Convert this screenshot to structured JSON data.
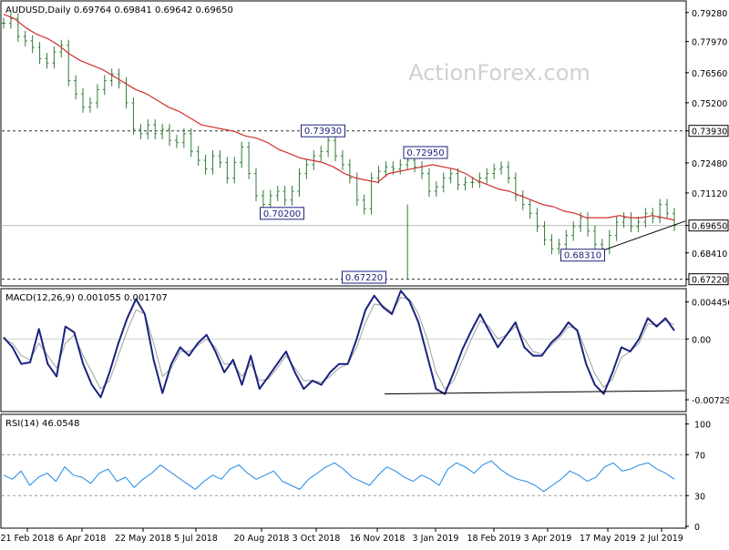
{
  "header": {
    "symbol_line": "AUDUSD,Daily  0.69764 0.69841 0.69642 0.69650",
    "watermark": "ActionForex.com"
  },
  "colors": {
    "candle": "#2e7d32",
    "sma": "#d32f2f",
    "macd": "#1a237e",
    "signal": "#a0a0a0",
    "rsi": "#1e88e5",
    "annotation_box": "#1a237e",
    "trendline": "#000000"
  },
  "chart_data": [
    {
      "type": "line",
      "name": "price",
      "title": "AUDUSD,Daily",
      "ohlc_header": {
        "open": 0.69764,
        "high": 0.69841,
        "low": 0.69642,
        "close": 0.6965
      },
      "ylim": [
        0.67,
        0.796
      ],
      "y_ticks": [
        "0.79280",
        "0.77970",
        "0.76560",
        "0.75200",
        "0.73930",
        "0.72480",
        "0.71120",
        "0.69650",
        "0.68410",
        "0.67220"
      ],
      "y_tick_values": [
        0.7928,
        0.7797,
        0.7656,
        0.752,
        0.7393,
        0.7248,
        0.7112,
        0.6965,
        0.6841,
        0.6722
      ],
      "x_ticks": [
        "21 Feb 2018",
        "6 Apr 2018",
        "22 May 2018",
        "5 Jul 2018",
        "20 Aug 2018",
        "3 Oct 2018",
        "16 Nov 2018",
        "3 Jan 2019",
        "18 Feb 2019",
        "3 Apr 2019",
        "17 May 2019",
        "2 Jul 2019"
      ],
      "close_path": [
        0.788,
        0.79,
        0.782,
        0.78,
        0.777,
        0.772,
        0.77,
        0.775,
        0.778,
        0.762,
        0.756,
        0.75,
        0.752,
        0.758,
        0.762,
        0.765,
        0.761,
        0.752,
        0.74,
        0.738,
        0.742,
        0.738,
        0.74,
        0.735,
        0.734,
        0.738,
        0.73,
        0.726,
        0.722,
        0.728,
        0.725,
        0.718,
        0.725,
        0.732,
        0.72,
        0.71,
        0.706,
        0.71,
        0.712,
        0.708,
        0.712,
        0.72,
        0.724,
        0.728,
        0.73,
        0.735,
        0.728,
        0.724,
        0.718,
        0.708,
        0.704,
        0.718,
        0.721,
        0.723,
        0.722,
        0.724,
        0.726,
        0.723,
        0.72,
        0.712,
        0.714,
        0.718,
        0.72,
        0.715,
        0.716,
        0.716,
        0.718,
        0.72,
        0.722,
        0.723,
        0.718,
        0.71,
        0.706,
        0.702,
        0.696,
        0.69,
        0.686,
        0.688,
        0.692,
        0.696,
        0.7,
        0.694,
        0.688,
        0.686,
        0.692,
        0.698,
        0.7,
        0.696,
        0.698,
        0.702,
        0.7,
        0.706,
        0.702,
        0.6965
      ],
      "sma_path": [
        0.792,
        0.79,
        0.786,
        0.783,
        0.781,
        0.778,
        0.774,
        0.771,
        0.769,
        0.767,
        0.764,
        0.761,
        0.758,
        0.756,
        0.753,
        0.75,
        0.748,
        0.745,
        0.742,
        0.741,
        0.74,
        0.739,
        0.737,
        0.736,
        0.734,
        0.731,
        0.729,
        0.727,
        0.726,
        0.725,
        0.723,
        0.72,
        0.718,
        0.717,
        0.716,
        0.72,
        0.721,
        0.722,
        0.723,
        0.724,
        0.723,
        0.722,
        0.72,
        0.717,
        0.715,
        0.713,
        0.712,
        0.71,
        0.708,
        0.706,
        0.705,
        0.703,
        0.702,
        0.7,
        0.7,
        0.7,
        0.701,
        0.7,
        0.7,
        0.701,
        0.7,
        0.699
      ],
      "reference_levels": [
        0.7393,
        0.6722,
        0.6965
      ],
      "annotations": [
        {
          "label": "0.73930",
          "x_frac": 0.47,
          "y": 0.7393
        },
        {
          "label": "0.72950",
          "x_frac": 0.62,
          "y": 0.7295
        },
        {
          "label": "0.70200",
          "x_frac": 0.41,
          "y": 0.702
        },
        {
          "label": "0.67220",
          "x_frac": 0.53,
          "y": 0.6722
        },
        {
          "label": "0.68310",
          "x_frac": 0.85,
          "y": 0.6831
        }
      ],
      "trendline": [
        [
          0.86,
          0.6831
        ],
        [
          1.0,
          0.6985
        ]
      ]
    },
    {
      "type": "line",
      "name": "macd",
      "title": "MACD(12,26,9) 0.001055 0.001707",
      "ylim": [
        -0.0085,
        0.0055
      ],
      "y_ticks": [
        "0.004456",
        "0.00",
        "-0.007298"
      ],
      "y_tick_values": [
        0.004456,
        0.0,
        -0.007298
      ],
      "macd_path": [
        0.0002,
        -0.001,
        -0.003,
        -0.0028,
        0.0012,
        -0.003,
        -0.0045,
        0.0015,
        0.0008,
        -0.003,
        -0.0055,
        -0.007,
        -0.004,
        -0.0005,
        0.0025,
        0.0048,
        0.003,
        -0.0025,
        -0.0065,
        -0.003,
        -0.001,
        -0.002,
        -0.0005,
        0.0005,
        -0.0015,
        -0.004,
        -0.0025,
        -0.0055,
        -0.002,
        -0.006,
        -0.0045,
        -0.003,
        -0.0015,
        -0.004,
        -0.006,
        -0.005,
        -0.0055,
        -0.004,
        -0.003,
        -0.003,
        0.0,
        0.0035,
        0.0052,
        0.0038,
        0.003,
        0.0058,
        0.0045,
        0.002,
        -0.002,
        -0.006,
        -0.0066,
        -0.004,
        -0.0012,
        0.001,
        0.003,
        0.001,
        -0.001,
        0.0005,
        0.002,
        -0.001,
        -0.002,
        -0.002,
        -0.0005,
        0.0005,
        0.002,
        0.001,
        -0.003,
        -0.0055,
        -0.0066,
        -0.004,
        -0.001,
        -0.0015,
        0.0,
        0.0025,
        0.0015,
        0.0025,
        0.001
      ],
      "signal_path": [
        0.0,
        -0.0005,
        -0.002,
        -0.0025,
        -0.0005,
        -0.002,
        -0.0035,
        -0.0005,
        0.0005,
        -0.002,
        -0.004,
        -0.006,
        -0.005,
        -0.002,
        0.001,
        0.0035,
        0.003,
        -0.0005,
        -0.0045,
        -0.0035,
        -0.0015,
        -0.0015,
        -0.0008,
        0.0,
        -0.001,
        -0.003,
        -0.003,
        -0.0045,
        -0.003,
        -0.005,
        -0.0048,
        -0.0035,
        -0.002,
        -0.0035,
        -0.005,
        -0.005,
        -0.0052,
        -0.0045,
        -0.0035,
        -0.003,
        -0.001,
        0.002,
        0.0042,
        0.004,
        0.0032,
        0.005,
        0.0048,
        0.003,
        0.0,
        -0.004,
        -0.006,
        -0.005,
        -0.0025,
        0.0,
        0.0022,
        0.0015,
        0.0,
        0.0005,
        0.0015,
        0.0,
        -0.0015,
        -0.0018,
        -0.0008,
        0.0002,
        0.0015,
        0.0012,
        -0.0015,
        -0.0042,
        -0.0058,
        -0.0048,
        -0.0022,
        -0.0015,
        -0.0005,
        0.0018,
        0.0017,
        0.0022,
        0.0017
      ],
      "trendline": [
        [
          0.56,
          -0.0066
        ],
        [
          1.0,
          -0.0062
        ]
      ]
    },
    {
      "type": "line",
      "name": "rsi",
      "title": "RSI(14) 46.0548",
      "ylim": [
        0,
        105
      ],
      "y_ticks": [
        "100",
        "70",
        "30",
        "0"
      ],
      "y_tick_values": [
        100,
        70,
        30,
        0
      ],
      "rsi_path": [
        50,
        46,
        54,
        40,
        48,
        52,
        44,
        58,
        50,
        48,
        42,
        52,
        56,
        44,
        48,
        38,
        46,
        52,
        60,
        54,
        48,
        42,
        36,
        44,
        50,
        46,
        56,
        60,
        52,
        46,
        50,
        54,
        44,
        40,
        36,
        46,
        52,
        58,
        62,
        56,
        48,
        44,
        40,
        50,
        58,
        54,
        48,
        44,
        50,
        46,
        40,
        56,
        62,
        58,
        52,
        60,
        64,
        56,
        50,
        46,
        44,
        40,
        34,
        40,
        46,
        54,
        50,
        44,
        48,
        58,
        62,
        54,
        56,
        60,
        62,
        56,
        52,
        46
      ]
    }
  ]
}
